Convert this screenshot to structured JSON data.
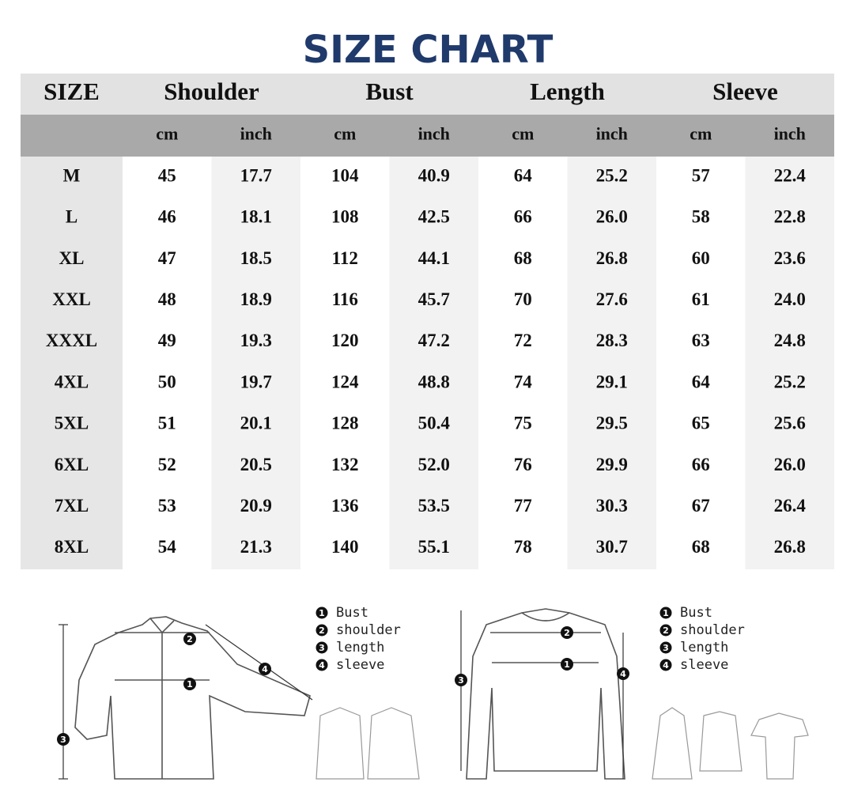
{
  "title": "SIZE CHART",
  "table": {
    "headers": [
      "SIZE",
      "Shoulder",
      "Bust",
      "Length",
      "Sleeve"
    ],
    "units": [
      "cm",
      "inch",
      "cm",
      "inch",
      "cm",
      "inch",
      "cm",
      "inch"
    ],
    "rows": [
      [
        "M",
        "45",
        "17.7",
        "104",
        "40.9",
        "64",
        "25.2",
        "57",
        "22.4"
      ],
      [
        "L",
        "46",
        "18.1",
        "108",
        "42.5",
        "66",
        "26.0",
        "58",
        "22.8"
      ],
      [
        "XL",
        "47",
        "18.5",
        "112",
        "44.1",
        "68",
        "26.8",
        "60",
        "23.6"
      ],
      [
        "XXL",
        "48",
        "18.9",
        "116",
        "45.7",
        "70",
        "27.6",
        "61",
        "24.0"
      ],
      [
        "XXXL",
        "49",
        "19.3",
        "120",
        "47.2",
        "72",
        "28.3",
        "63",
        "24.8"
      ],
      [
        "4XL",
        "50",
        "19.7",
        "124",
        "48.8",
        "74",
        "29.1",
        "64",
        "25.2"
      ],
      [
        "5XL",
        "51",
        "20.1",
        "128",
        "50.4",
        "75",
        "29.5",
        "65",
        "25.6"
      ],
      [
        "6XL",
        "52",
        "20.5",
        "132",
        "52.0",
        "76",
        "29.9",
        "66",
        "26.0"
      ],
      [
        "7XL",
        "53",
        "20.9",
        "136",
        "53.5",
        "77",
        "30.3",
        "67",
        "26.4"
      ],
      [
        "8XL",
        "54",
        "21.3",
        "140",
        "55.1",
        "78",
        "30.7",
        "68",
        "26.8"
      ]
    ]
  },
  "diagrams": [
    {
      "legend": [
        {
          "number": "1",
          "label": "Bust"
        },
        {
          "number": "2",
          "label": "shoulder"
        },
        {
          "number": "3",
          "label": "length"
        },
        {
          "number": "4",
          "label": "sleeve"
        }
      ]
    },
    {
      "legend": [
        {
          "number": "1",
          "label": "Bust"
        },
        {
          "number": "2",
          "label": "shoulder"
        },
        {
          "number": "3",
          "label": "length"
        },
        {
          "number": "4",
          "label": "sleeve"
        }
      ]
    }
  ]
}
